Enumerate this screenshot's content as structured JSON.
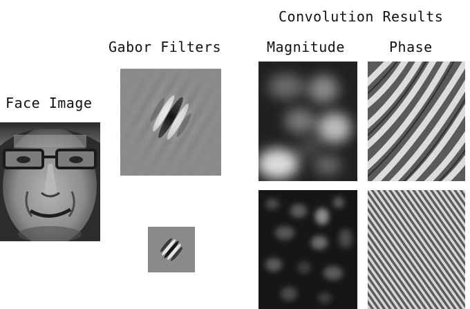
{
  "labels": {
    "face_image": "Face Image",
    "gabor_filters": "Gabor Filters",
    "convolution_results": "Convolution Results",
    "magnitude": "Magnitude",
    "phase": "Phase"
  },
  "colors": {
    "filter_background": "#8a8a8a",
    "magnitude_dark": "#1c1c1c",
    "phase_light": "#d8d8d8",
    "phase_dark": "#5a5a5a",
    "face_skin": "#9a9a9a"
  },
  "panels": {
    "face": "grayscale face photo",
    "filters": [
      "large-scale filter",
      "small-scale filter"
    ],
    "results": [
      "large-scale response",
      "small-scale response"
    ]
  }
}
